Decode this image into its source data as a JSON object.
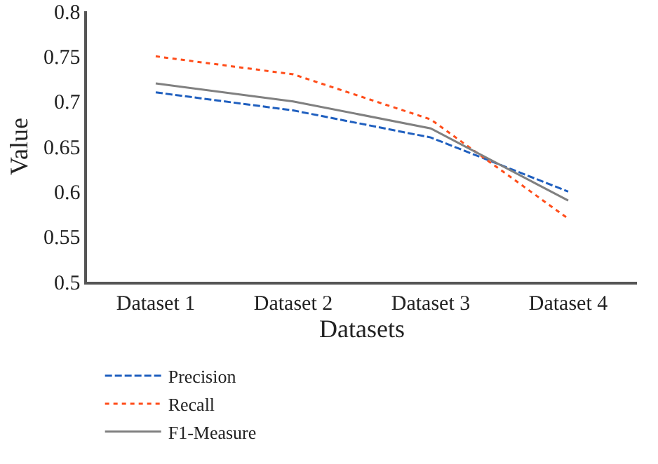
{
  "chart_data": {
    "type": "line",
    "xlabel": "Datasets",
    "ylabel": "Value",
    "categories": [
      "Dataset 1",
      "Dataset 2",
      "Dataset 3",
      "Dataset 4"
    ],
    "series": [
      {
        "name": "Precision",
        "color": "#1f5fbf",
        "values": [
          0.71,
          0.69,
          0.66,
          0.6
        ],
        "line_style": "dashed"
      },
      {
        "name": "Recall",
        "color": "#ff4d1a",
        "values": [
          0.75,
          0.73,
          0.68,
          0.57
        ],
        "line_style": "dotted"
      },
      {
        "name": "F1-Measure",
        "color": "#808080",
        "values": [
          0.72,
          0.7,
          0.67,
          0.59
        ],
        "line_style": "solid"
      }
    ],
    "ylim": [
      0.5,
      0.8
    ],
    "yticks": [
      0.5,
      0.55,
      0.6,
      0.65,
      0.7,
      0.75,
      0.8
    ],
    "grid": false,
    "legend": "bottom",
    "marker": "none"
  }
}
